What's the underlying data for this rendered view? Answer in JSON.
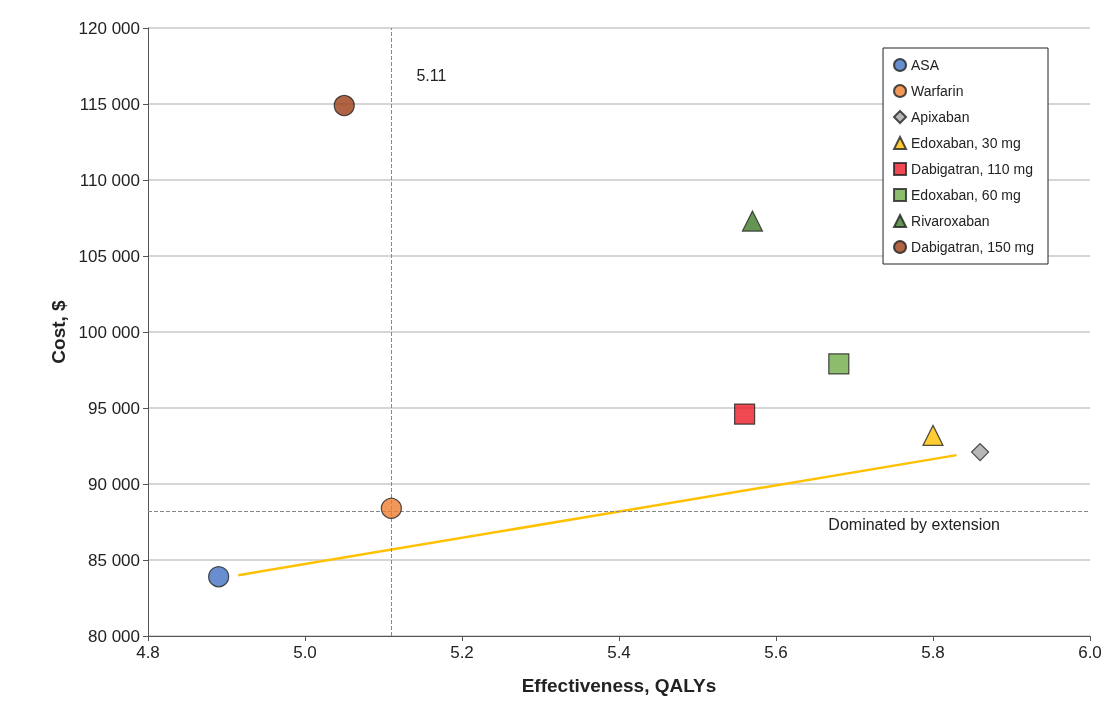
{
  "chart_data": {
    "type": "scatter",
    "xlabel": "Effectiveness, QALYs",
    "ylabel": "Cost, $",
    "xlim": [
      4.8,
      6.0
    ],
    "xticks": [
      {
        "value": 4.8,
        "label": "4.8"
      },
      {
        "value": 5.0,
        "label": "5.0"
      },
      {
        "value": 5.2,
        "label": "5.2"
      },
      {
        "value": 5.4,
        "label": "5.4"
      },
      {
        "value": 5.6,
        "label": "5.6"
      },
      {
        "value": 5.8,
        "label": "5.8"
      },
      {
        "value": 6.0,
        "label": "6.0"
      }
    ],
    "ylim": [
      80000,
      120000
    ],
    "yticks": [
      {
        "value": 80000,
        "label": "80 000"
      },
      {
        "value": 85000,
        "label": "85 000"
      },
      {
        "value": 90000,
        "label": "90 000"
      },
      {
        "value": 95000,
        "label": "95 000"
      },
      {
        "value": 100000,
        "label": "100 000"
      },
      {
        "value": 105000,
        "label": "105 000"
      },
      {
        "value": 110000,
        "label": "110 000"
      },
      {
        "value": 115000,
        "label": "115 000"
      },
      {
        "value": 120000,
        "label": "120 000"
      }
    ],
    "grid": "y",
    "legend": "top right",
    "series": [
      {
        "name": "ASA",
        "color": "#4472c4",
        "marker": "circle",
        "x": [
          4.89
        ],
        "values": [
          83900
        ]
      },
      {
        "name": "Warfarin",
        "color": "#ed7d31",
        "marker": "circle",
        "x": [
          5.11
        ],
        "values": [
          88400
        ]
      },
      {
        "name": "Apixaban",
        "color": "#a5a5a5",
        "marker": "diamond",
        "x": [
          5.86
        ],
        "values": [
          92100
        ]
      },
      {
        "name": "Edoxaban, 30 mg",
        "color": "#ffc000",
        "marker": "triangle",
        "x": [
          5.8
        ],
        "values": [
          93200
        ]
      },
      {
        "name": "Dabigatran, 110 mg",
        "color": "#ee1c25",
        "marker": "square",
        "x": [
          5.56
        ],
        "values": [
          94600
        ]
      },
      {
        "name": "Edoxaban, 60 mg",
        "color": "#70ad47",
        "marker": "square",
        "x": [
          5.68
        ],
        "values": [
          97900
        ]
      },
      {
        "name": "Rivaroxaban",
        "color": "#3e7b27",
        "marker": "triangle",
        "x": [
          5.57
        ],
        "values": [
          107300
        ]
      },
      {
        "name": "Dabigatran, 150 mg",
        "color": "#9e3d14",
        "marker": "circle",
        "x": [
          5.05
        ],
        "values": [
          114900
        ]
      },
      {
        "type": "line",
        "color": "#ffc000",
        "marker": "none",
        "x": [
          4.915,
          5.83
        ],
        "values": [
          84000,
          91900
        ]
      }
    ],
    "ref_lines": [
      {
        "axis": "x",
        "value": 5.11,
        "label": "5.11",
        "color": "#888888",
        "line_style": "dashed"
      },
      {
        "axis": "y",
        "value": 88200,
        "label": "Dominated by extension",
        "color": "#888888",
        "line_style": "dashed"
      }
    ]
  }
}
